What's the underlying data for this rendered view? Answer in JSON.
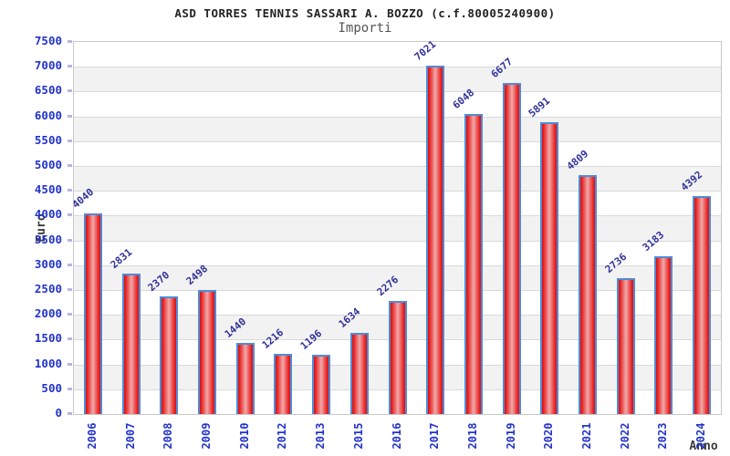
{
  "header": {
    "title": "ASD TORRES TENNIS SASSARI A. BOZZO (c.f.80005240900)",
    "subtitle": "Importi"
  },
  "chart_data": {
    "type": "bar",
    "title": "ASD TORRES TENNIS SASSARI A. BOZZO (c.f.80005240900)",
    "subtitle": "Importi",
    "categories": [
      "2006",
      "2007",
      "2008",
      "2009",
      "2010",
      "2012",
      "2013",
      "2015",
      "2016",
      "2017",
      "2018",
      "2019",
      "2020",
      "2021",
      "2022",
      "2023",
      "2024"
    ],
    "values": [
      4040,
      2831,
      2370,
      2498,
      1440,
      1216,
      1196,
      1634,
      2276,
      7021,
      6048,
      6677,
      5891,
      4809,
      2736,
      3183,
      4392
    ],
    "xlabel": "Anno",
    "ylabel": "Euro",
    "ylim": [
      0,
      7500
    ],
    "ytick_step": 500,
    "yticks": [
      0,
      500,
      1000,
      1500,
      2000,
      2500,
      3000,
      3500,
      4000,
      4500,
      5000,
      5500,
      6000,
      6500,
      7000,
      7500
    ],
    "grid": "horizontal-bands-alternating",
    "legend_position": "none"
  },
  "colors": {
    "bar_fill_edge": "#d51414",
    "bar_fill_center": "#f0aaaa",
    "bar_border": "#4f8bd6",
    "tick_label_blue": "#2233cc",
    "value_label_navy": "#333399",
    "band_gray": "#f2f2f2",
    "band_white": "#ffffff",
    "grid_line": "#d9d9d9",
    "plot_border": "#c9c9c9",
    "title_color": "#222222",
    "subtitle_color": "#555555",
    "axis_title_color": "#3a3a3a",
    "background": "#ffffff"
  }
}
